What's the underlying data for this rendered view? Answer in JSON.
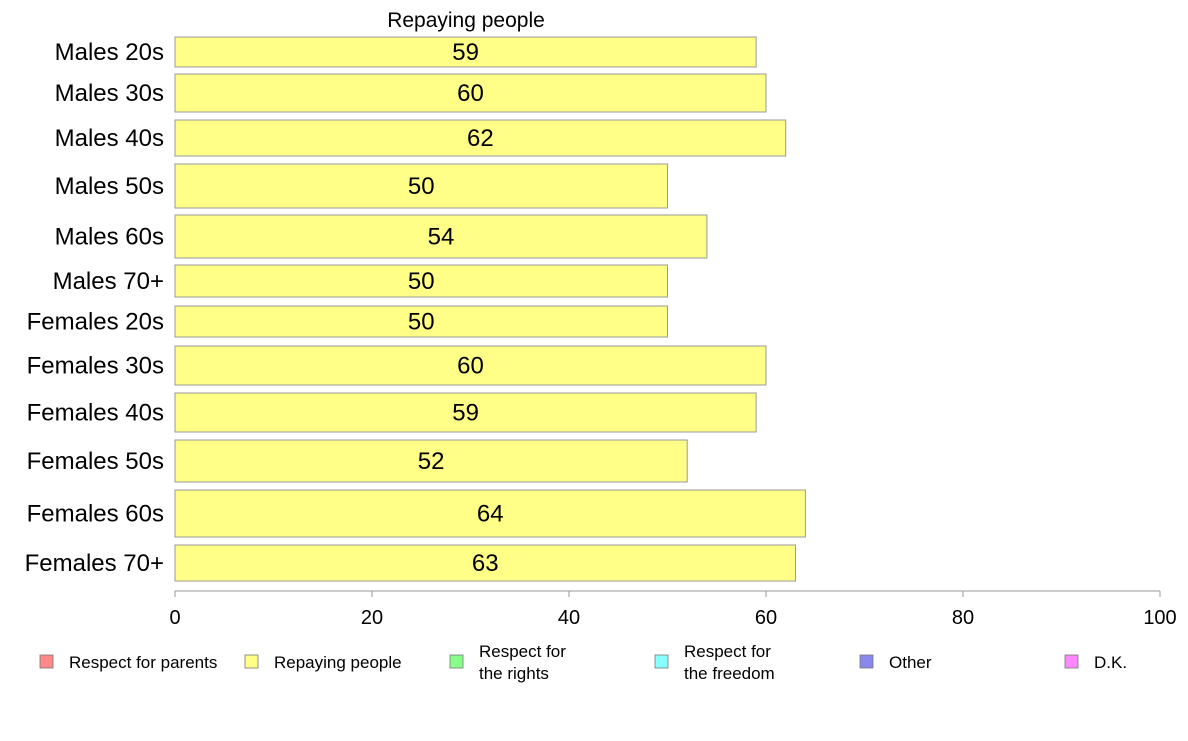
{
  "chart_data": {
    "type": "bar",
    "orientation": "horizontal",
    "title": "Repaying people",
    "xlabel": "",
    "ylabel": "",
    "xlim": [
      0,
      100
    ],
    "x_ticks": [
      0,
      20,
      40,
      60,
      80,
      100
    ],
    "categories": [
      "Males 20s",
      "Males 30s",
      "Males 40s",
      "Males 50s",
      "Males 60s",
      "Males 70+",
      "Females 20s",
      "Females 30s",
      "Females 40s",
      "Females 50s",
      "Females 60s",
      "Females 70+"
    ],
    "series": [
      {
        "name": "Repaying people",
        "color": "#ffff88",
        "values": [
          59,
          60,
          62,
          50,
          54,
          50,
          50,
          60,
          59,
          52,
          64,
          63
        ]
      }
    ],
    "grid": false,
    "legend": {
      "position": "bottom",
      "entries": [
        {
          "label": [
            "Respect for parents"
          ],
          "color": "#ff8888"
        },
        {
          "label": [
            "Repaying people"
          ],
          "color": "#ffff88"
        },
        {
          "label": [
            "Respect for",
            "the rights"
          ],
          "color": "#88ff88"
        },
        {
          "label": [
            "Respect for",
            "the freedom"
          ],
          "color": "#88ffff"
        },
        {
          "label": [
            "Other"
          ],
          "color": "#8888ee"
        },
        {
          "label": [
            "D.K."
          ],
          "color": "#ff88ff"
        }
      ]
    }
  }
}
